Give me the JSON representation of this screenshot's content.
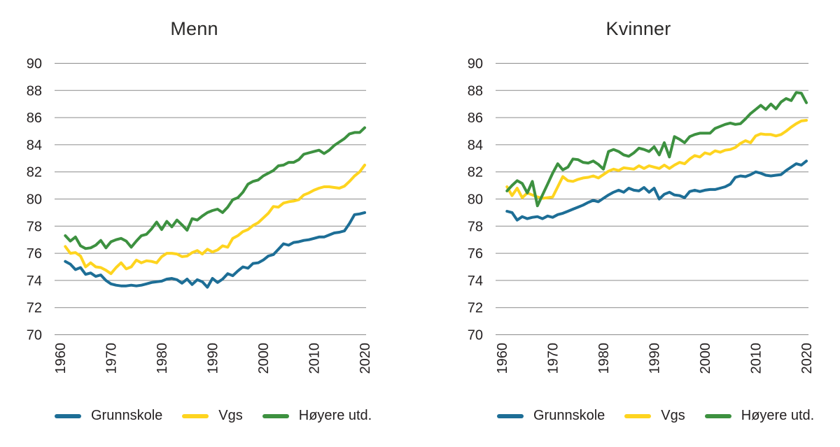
{
  "style": {
    "background": "#ffffff",
    "grid_color": "#8c8c8c",
    "text_color": "#231f20",
    "series_colors": {
      "grunnskole": "#1d6e96",
      "vgs": "#fed41f",
      "hoyere_utd": "#3d9140"
    }
  },
  "years": [
    1961,
    1962,
    1963,
    1964,
    1965,
    1966,
    1967,
    1968,
    1969,
    1970,
    1971,
    1972,
    1973,
    1974,
    1975,
    1976,
    1977,
    1978,
    1979,
    1980,
    1981,
    1982,
    1983,
    1984,
    1985,
    1986,
    1987,
    1988,
    1989,
    1990,
    1991,
    1992,
    1993,
    1994,
    1995,
    1996,
    1997,
    1998,
    1999,
    2000,
    2001,
    2002,
    2003,
    2004,
    2005,
    2006,
    2007,
    2008,
    2009,
    2010,
    2011,
    2012,
    2013,
    2014,
    2015,
    2016,
    2017,
    2018,
    2019,
    2020
  ],
  "chart_data": [
    {
      "type": "line",
      "title": "Menn",
      "xlabel": "",
      "ylabel": "",
      "ylim": [
        70,
        90
      ],
      "yticks": [
        70,
        72,
        74,
        76,
        78,
        80,
        82,
        84,
        86,
        88,
        90
      ],
      "xticks": [
        1960,
        1970,
        1980,
        1990,
        2000,
        2010,
        2020
      ],
      "grid": true,
      "legend_position": "bottom",
      "series": [
        {
          "name": "Grunnskole",
          "color_key": "grunnskole",
          "values": [
            75.4,
            75.2,
            74.8,
            74.95,
            74.45,
            74.55,
            74.3,
            74.4,
            74.0,
            73.75,
            73.65,
            73.6,
            73.6,
            73.65,
            73.6,
            73.65,
            73.75,
            73.85,
            73.9,
            73.95,
            74.1,
            74.15,
            74.05,
            73.8,
            74.1,
            73.7,
            74.05,
            73.9,
            73.5,
            74.15,
            73.85,
            74.1,
            74.5,
            74.35,
            74.7,
            75.0,
            74.9,
            75.25,
            75.3,
            75.5,
            75.8,
            75.9,
            76.3,
            76.7,
            76.6,
            76.8,
            76.85,
            76.95,
            77.0,
            77.1,
            77.2,
            77.2,
            77.35,
            77.5,
            77.55,
            77.65,
            78.2,
            78.85,
            78.9,
            79.0
          ]
        },
        {
          "name": "Vgs",
          "color_key": "vgs",
          "values": [
            76.5,
            76.0,
            76.05,
            75.8,
            75.0,
            75.3,
            75.0,
            74.95,
            74.75,
            74.5,
            74.95,
            75.3,
            74.85,
            75.0,
            75.5,
            75.3,
            75.45,
            75.4,
            75.3,
            75.75,
            76.0,
            76.0,
            75.95,
            75.75,
            75.8,
            76.05,
            76.2,
            75.95,
            76.3,
            76.1,
            76.25,
            76.55,
            76.45,
            77.1,
            77.3,
            77.6,
            77.75,
            78.05,
            78.25,
            78.6,
            78.95,
            79.45,
            79.4,
            79.7,
            79.8,
            79.85,
            79.95,
            80.3,
            80.45,
            80.65,
            80.8,
            80.9,
            80.9,
            80.85,
            80.8,
            80.95,
            81.3,
            81.7,
            82.0,
            82.5
          ]
        },
        {
          "name": "Høyere utd.",
          "color_key": "hoyere_utd",
          "values": [
            77.3,
            76.9,
            77.2,
            76.55,
            76.35,
            76.4,
            76.6,
            76.95,
            76.4,
            76.85,
            77.0,
            77.1,
            76.9,
            76.45,
            76.9,
            77.3,
            77.4,
            77.8,
            78.3,
            77.75,
            78.35,
            77.95,
            78.45,
            78.1,
            77.7,
            78.55,
            78.45,
            78.75,
            79.0,
            79.15,
            79.25,
            79.0,
            79.4,
            79.95,
            80.1,
            80.5,
            81.1,
            81.3,
            81.4,
            81.7,
            81.9,
            82.1,
            82.45,
            82.5,
            82.7,
            82.7,
            82.9,
            83.3,
            83.4,
            83.5,
            83.6,
            83.35,
            83.6,
            83.95,
            84.2,
            84.45,
            84.8,
            84.9,
            84.9,
            85.25
          ]
        }
      ]
    },
    {
      "type": "line",
      "title": "Kvinner",
      "xlabel": "",
      "ylabel": "",
      "ylim": [
        70,
        90
      ],
      "yticks": [
        70,
        72,
        74,
        76,
        78,
        80,
        82,
        84,
        86,
        88,
        90
      ],
      "xticks": [
        1960,
        1970,
        1980,
        1990,
        2000,
        2010,
        2020
      ],
      "grid": true,
      "legend_position": "bottom",
      "series": [
        {
          "name": "Grunnskole",
          "color_key": "grunnskole",
          "values": [
            79.1,
            79.0,
            78.45,
            78.7,
            78.55,
            78.65,
            78.7,
            78.55,
            78.75,
            78.65,
            78.85,
            78.95,
            79.1,
            79.25,
            79.4,
            79.55,
            79.75,
            79.9,
            79.8,
            80.05,
            80.3,
            80.5,
            80.65,
            80.5,
            80.8,
            80.65,
            80.6,
            80.85,
            80.5,
            80.8,
            80.0,
            80.35,
            80.5,
            80.3,
            80.25,
            80.1,
            80.55,
            80.65,
            80.55,
            80.65,
            80.7,
            80.7,
            80.8,
            80.9,
            81.1,
            81.6,
            81.7,
            81.65,
            81.8,
            82.0,
            81.9,
            81.75,
            81.7,
            81.75,
            81.8,
            82.1,
            82.35,
            82.6,
            82.5,
            82.8
          ]
        },
        {
          "name": "Vgs",
          "color_key": "vgs",
          "values": [
            80.9,
            80.25,
            80.8,
            80.1,
            80.45,
            80.3,
            80.15,
            80.05,
            80.1,
            80.15,
            80.9,
            81.65,
            81.35,
            81.3,
            81.45,
            81.55,
            81.6,
            81.7,
            81.55,
            81.8,
            82.05,
            82.2,
            82.1,
            82.3,
            82.25,
            82.2,
            82.45,
            82.25,
            82.45,
            82.35,
            82.25,
            82.5,
            82.25,
            82.5,
            82.7,
            82.6,
            82.95,
            83.2,
            83.1,
            83.4,
            83.3,
            83.55,
            83.45,
            83.6,
            83.65,
            83.8,
            84.1,
            84.3,
            84.15,
            84.65,
            84.8,
            84.75,
            84.75,
            84.65,
            84.75,
            85.0,
            85.3,
            85.55,
            85.75,
            85.8
          ]
        },
        {
          "name": "Høyere utd.",
          "color_key": "hoyere_utd",
          "values": [
            80.6,
            81.0,
            81.35,
            81.15,
            80.45,
            81.3,
            79.5,
            80.3,
            81.1,
            81.9,
            82.6,
            82.15,
            82.35,
            82.95,
            82.9,
            82.7,
            82.65,
            82.8,
            82.55,
            82.2,
            83.5,
            83.65,
            83.5,
            83.25,
            83.15,
            83.4,
            83.75,
            83.65,
            83.5,
            83.85,
            83.25,
            84.15,
            83.1,
            84.6,
            84.4,
            84.15,
            84.6,
            84.75,
            84.85,
            84.85,
            84.85,
            85.2,
            85.35,
            85.5,
            85.6,
            85.5,
            85.55,
            85.9,
            86.3,
            86.6,
            86.9,
            86.6,
            87.0,
            86.65,
            87.15,
            87.4,
            87.25,
            87.85,
            87.8,
            87.1
          ]
        }
      ]
    }
  ]
}
